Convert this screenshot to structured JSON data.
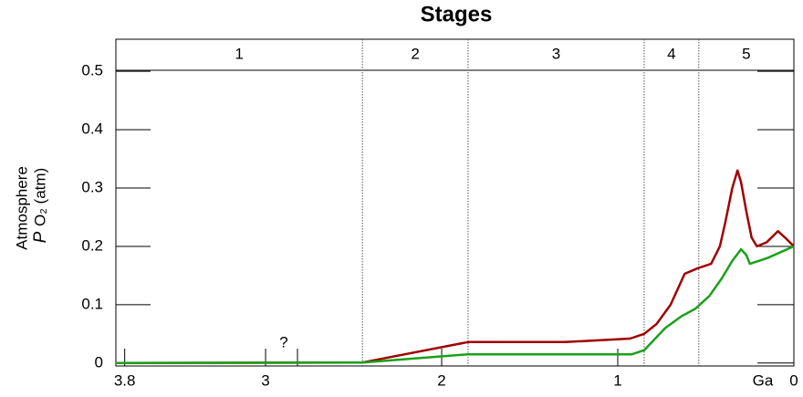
{
  "chart_data": {
    "type": "line",
    "title": "Stages",
    "y_label": "Atmosphere",
    "y_label_2": "P",
    "y_label_3": "O₂ (atm)",
    "x_unit": "Ga",
    "annotation": "?",
    "xlim": [
      3.85,
      0
    ],
    "ylim": [
      -0.005,
      0.555
    ],
    "xticks": [
      {
        "value": 3.8,
        "label": "3.8"
      },
      3,
      2,
      1,
      0
    ],
    "yticks": [
      0,
      0.1,
      0.2,
      0.3,
      0.4,
      0.5
    ],
    "stages": [
      {
        "label": "1",
        "start": 3.85,
        "end": 2.45
      },
      {
        "label": "2",
        "start": 2.45,
        "end": 1.85
      },
      {
        "label": "3",
        "start": 1.85,
        "end": 0.85
      },
      {
        "label": "4",
        "start": 0.85,
        "end": 0.54
      },
      {
        "label": "5",
        "start": 0.54,
        "end": 0
      }
    ],
    "series": [
      {
        "color": "#a00000",
        "x": [
          3.85,
          2.45,
          1.85,
          1.3,
          0.93,
          0.85,
          0.78,
          0.7,
          0.62,
          0.55,
          0.47,
          0.42,
          0.39,
          0.35,
          0.32,
          0.3,
          0.27,
          0.24,
          0.21,
          0.155,
          0.09,
          0.05,
          0
        ],
        "values": [
          0,
          0.001,
          0.036,
          0.036,
          0.042,
          0.05,
          0.067,
          0.1,
          0.153,
          0.162,
          0.17,
          0.2,
          0.24,
          0.3,
          0.33,
          0.31,
          0.26,
          0.215,
          0.2,
          0.207,
          0.226,
          0.215,
          0.2
        ]
      },
      {
        "color": "#1aa01a",
        "x": [
          3.85,
          2.45,
          1.85,
          1.3,
          0.92,
          0.85,
          0.73,
          0.64,
          0.56,
          0.48,
          0.41,
          0.35,
          0.3,
          0.27,
          0.25,
          0.15,
          0
        ],
        "values": [
          0,
          0.001,
          0.015,
          0.015,
          0.015,
          0.022,
          0.06,
          0.08,
          0.093,
          0.115,
          0.145,
          0.175,
          0.195,
          0.185,
          0.17,
          0.18,
          0.2
        ]
      }
    ]
  }
}
